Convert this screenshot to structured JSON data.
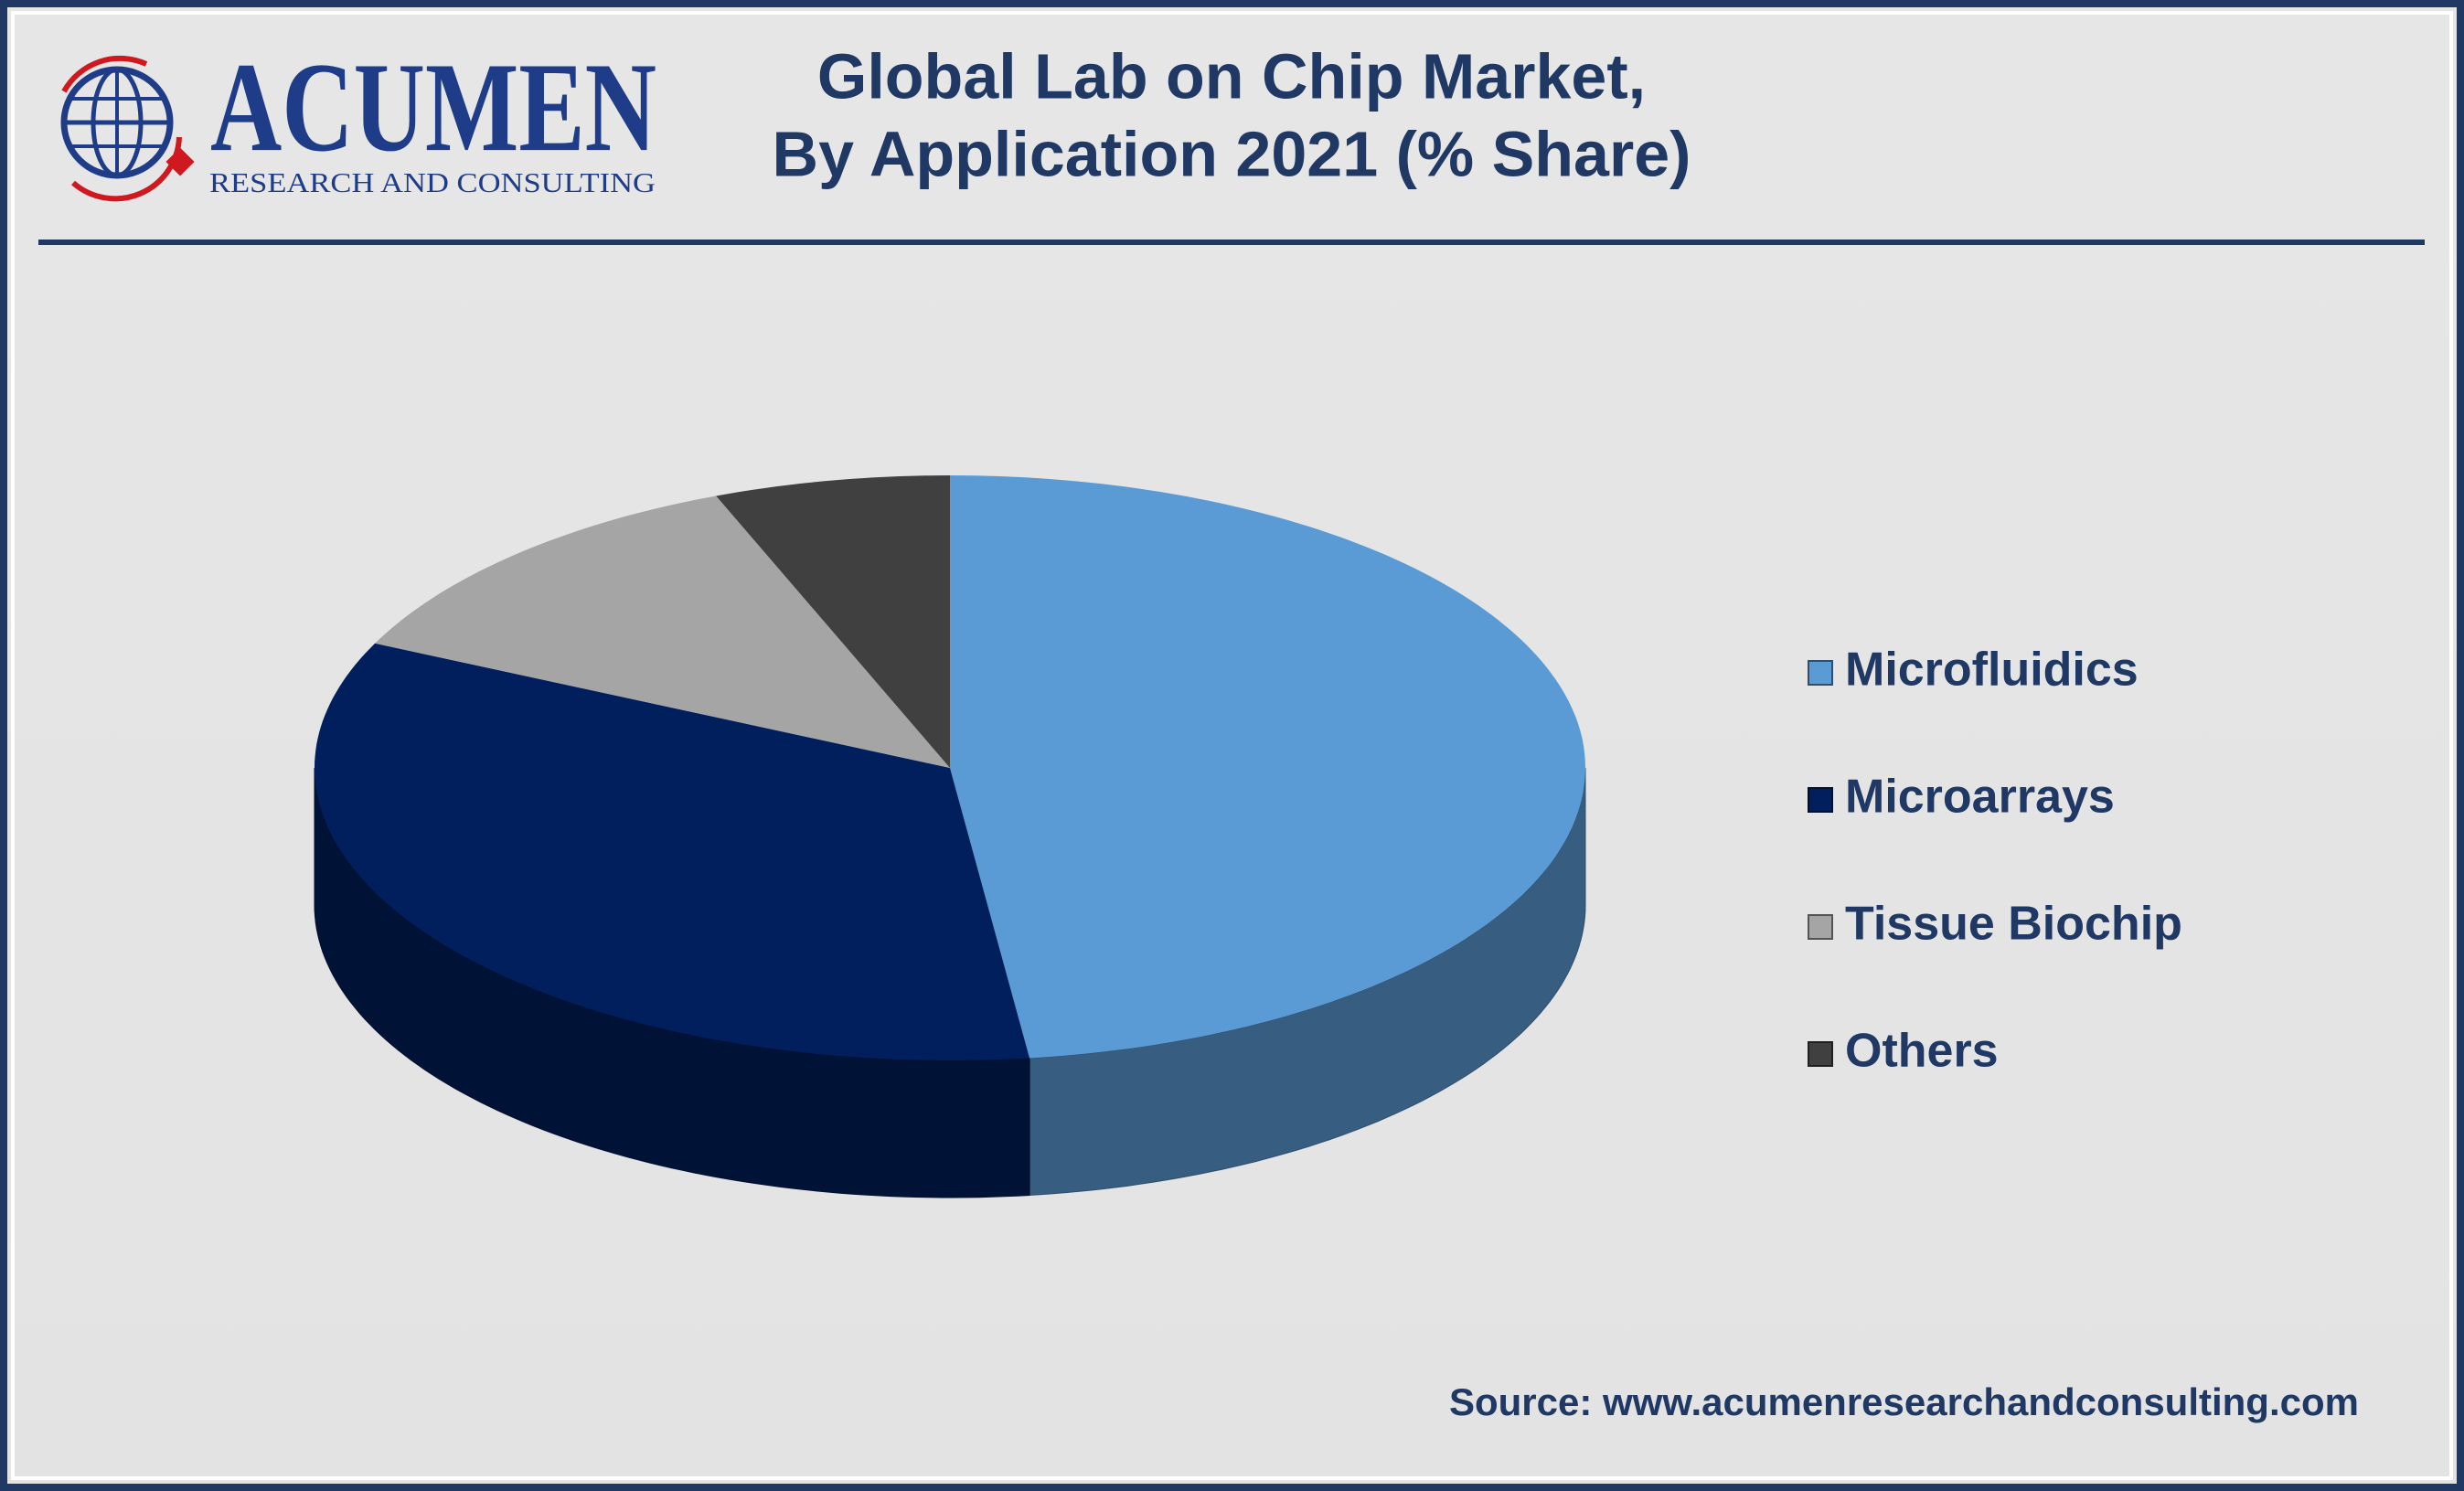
{
  "logo": {
    "name": "ACUMEN",
    "tagline": "RESEARCH AND CONSULTING"
  },
  "chart_data": {
    "type": "pie3d",
    "title": [
      "Global Lab on Chip Market,",
      "By Application 2021 (% Share)"
    ],
    "categories": [
      "Microfluidics",
      "Microarrays",
      "Tissue Biochip",
      "Others"
    ],
    "values": [
      48,
      34,
      12,
      6
    ],
    "colors": [
      "#5b9bd5",
      "#001f5c",
      "#a5a5a5",
      "#404040"
    ],
    "legend": "right",
    "source": "Source: www.acumenresearchandconsulting.com"
  }
}
